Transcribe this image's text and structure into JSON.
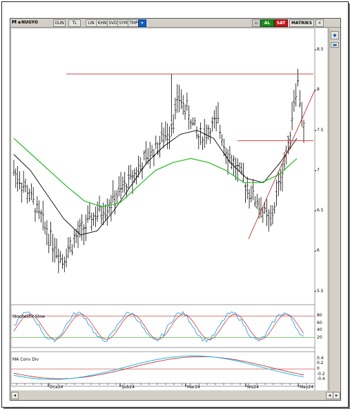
{
  "toolbar": {
    "m_label": "M",
    "symbol": "NUGYO",
    "period": "GUN",
    "currency": "TL",
    "scale": "LIN",
    "mode1": "KHN",
    "mode2": "SVD",
    "mode3": "SYM",
    "mode4": "TMP",
    "dropdown": "▾",
    "buy": "AL",
    "sell": "SAT",
    "matriks": "MATRIKS",
    "close": "×"
  },
  "colors": {
    "price_bar": "#000000",
    "ma_short": "#000000",
    "ma_long": "#22bb22",
    "resistance": "#c03030",
    "stoch_k": "#30a0e0",
    "stoch_d": "#c02020",
    "macd_line": "#30c0e0",
    "macd_signal": "#c02020"
  },
  "price_panel": {
    "y_ticks": [
      "8.5",
      "8",
      "7.5",
      "7",
      "6.5",
      "6",
      "5.5"
    ]
  },
  "stoch_panel": {
    "title": "Stochastic Slow",
    "y_ticks": [
      "80",
      "60",
      "40",
      "20"
    ]
  },
  "macd_panel": {
    "title": "MA Conv Div",
    "y_ticks": [
      "0.4",
      "0.2",
      "0",
      "-0.2",
      "-0.4"
    ]
  },
  "x_axis": {
    "labels": [
      "Oca24",
      "Şub24",
      "Mar24",
      "Nis24",
      "May24"
    ]
  },
  "chart_data": {
    "type": "candlestick",
    "symbol": "NUGYO",
    "price_range": [
      5.35,
      8.75
    ],
    "horizontal_lines": [
      8.2,
      7.37
    ],
    "trendline": {
      "from": [
        "Nis24",
        6.15
      ],
      "to": [
        "May24",
        8.0
      ]
    },
    "ma_short_shape": [
      7.2,
      7.0,
      6.7,
      6.4,
      6.2,
      6.25,
      6.5,
      6.8,
      7.1,
      7.3,
      7.45,
      7.5,
      7.4,
      7.1,
      6.9,
      6.85,
      7.1,
      7.4
    ],
    "ma_long_shape": [
      7.4,
      7.2,
      7.0,
      6.8,
      6.62,
      6.55,
      6.6,
      6.8,
      7.0,
      7.1,
      7.15,
      7.1,
      7.0,
      6.85,
      6.85,
      6.95,
      7.15
    ],
    "stoch_range": [
      0,
      100
    ],
    "macd_range": [
      -0.5,
      0.45
    ]
  }
}
